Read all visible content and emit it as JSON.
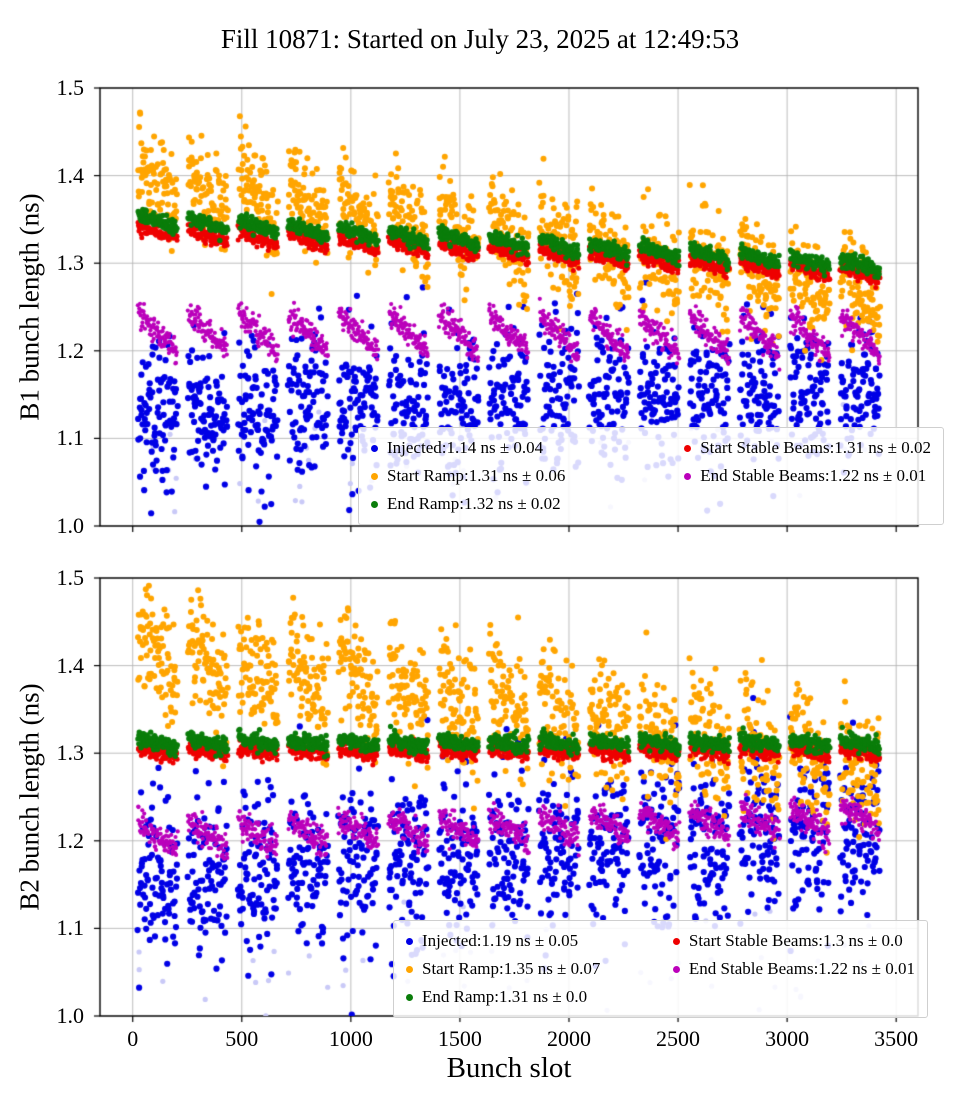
{
  "title": "Fill 10871: Started on July 23, 2025 at 12:49:53",
  "xlabel": "Bunch slot",
  "axes": {
    "x_tick_labels": [
      "0",
      "500",
      "1000",
      "1500",
      "2000",
      "2500",
      "3000",
      "3500"
    ],
    "x_tick_values": [
      0,
      500,
      1000,
      1500,
      2000,
      2500,
      3000,
      3500
    ],
    "y_tick_labels": [
      "1.0",
      "1.1",
      "1.2",
      "1.3",
      "1.4",
      "1.5"
    ],
    "y_tick_values": [
      1.0,
      1.1,
      1.2,
      1.3,
      1.4,
      1.5
    ]
  },
  "chart_data": [
    {
      "type": "scatter",
      "title": "",
      "ylabel": "B1 bunch length (ns)",
      "xlabel": "",
      "xlim": [
        -150,
        3600
      ],
      "ylim": [
        1.0,
        1.5
      ],
      "grid": true,
      "legend_position": "lower right",
      "x_unit": "bunch slot",
      "y_unit": "ns",
      "trains": {
        "start": 25,
        "count": 15,
        "spacing": 230,
        "length": 180,
        "step": 2
      },
      "series": [
        {
          "name": "Injected",
          "label": "Injected:1.14 ns ± 0.04",
          "mean_ns": 1.14,
          "std_ns": 0.04,
          "color": "#0000e6",
          "r": 3.1,
          "y0": 1.125,
          "y1": 1.16,
          "std": 0.042,
          "saw": 0
        },
        {
          "name": "Start Ramp",
          "label": "Start Ramp:1.31 ns ± 0.06",
          "mean_ns": 1.31,
          "std_ns": 0.06,
          "color": "#ffa500",
          "r": 3.0,
          "y0": 1.395,
          "y1": 1.265,
          "std": 0.027,
          "saw": 0.045
        },
        {
          "name": "End Ramp",
          "label": "End Ramp:1.32 ns ± 0.02",
          "mean_ns": 1.32,
          "std_ns": 0.02,
          "color": "#0a7d0a",
          "r": 2.7,
          "y0": 1.35,
          "y1": 1.297,
          "std": 0.004,
          "saw": 0.012
        },
        {
          "name": "Start Stable Beams",
          "label": "Start Stable Beams:1.31 ns ± 0.02",
          "mean_ns": 1.31,
          "std_ns": 0.02,
          "color": "#ee0000",
          "r": 2.5,
          "y0": 1.337,
          "y1": 1.287,
          "std": 0.004,
          "saw": 0.012
        },
        {
          "name": "End Stable Beams",
          "label": "End Stable Beams:1.22 ns ± 0.01",
          "mean_ns": 1.22,
          "std_ns": 0.01,
          "color": "#bb00bb",
          "r": 2.1,
          "y0": 1.222,
          "y1": 1.217,
          "std": 0.007,
          "saw": 0.045
        },
        {
          "name": "faint-points",
          "label": "",
          "color": "#c9c9f7",
          "r": 2.6,
          "y0": 1.07,
          "y1": 1.06,
          "std": 0.04,
          "saw": 0,
          "density": 0.05
        }
      ]
    },
    {
      "type": "scatter",
      "title": "",
      "ylabel": "B2 bunch length (ns)",
      "xlabel": "Bunch slot",
      "xlim": [
        -150,
        3600
      ],
      "ylim": [
        1.0,
        1.5
      ],
      "grid": true,
      "legend_position": "lower right",
      "x_unit": "bunch slot",
      "y_unit": "ns",
      "trains": {
        "start": 25,
        "count": 15,
        "spacing": 230,
        "length": 180,
        "step": 2
      },
      "series": [
        {
          "name": "Injected",
          "label": "Injected:1.19 ns ± 0.05",
          "mean_ns": 1.19,
          "std_ns": 0.05,
          "color": "#0000e6",
          "r": 3.1,
          "y0": 1.16,
          "y1": 1.21,
          "std": 0.05,
          "saw": 0
        },
        {
          "name": "Start Ramp",
          "label": "Start Ramp:1.35 ns ± 0.07",
          "mean_ns": 1.35,
          "std_ns": 0.07,
          "color": "#ffa500",
          "r": 3.0,
          "y0": 1.42,
          "y1": 1.28,
          "std": 0.035,
          "saw": 0.05
        },
        {
          "name": "End Ramp",
          "label": "End Ramp:1.31 ns ± 0.0",
          "mean_ns": 1.31,
          "std_ns": 0.0,
          "color": "#0a7d0a",
          "r": 2.7,
          "y0": 1.312,
          "y1": 1.312,
          "std": 0.0045,
          "saw": 0.008
        },
        {
          "name": "Start Stable Beams",
          "label": "Start Stable Beams:1.3 ns ± 0.0",
          "mean_ns": 1.3,
          "std_ns": 0.0,
          "color": "#ee0000",
          "r": 2.5,
          "y0": 1.302,
          "y1": 1.302,
          "std": 0.0045,
          "saw": 0.008
        },
        {
          "name": "End Stable Beams",
          "label": "End Stable Beams:1.22 ns ± 0.01",
          "mean_ns": 1.22,
          "std_ns": 0.01,
          "color": "#bb00bb",
          "r": 2.1,
          "y0": 1.205,
          "y1": 1.225,
          "std": 0.008,
          "saw": 0.03
        },
        {
          "name": "faint-points",
          "label": "",
          "color": "#c9c9f7",
          "r": 2.6,
          "y0": 1.06,
          "y1": 1.055,
          "std": 0.04,
          "saw": 0,
          "density": 0.05
        }
      ]
    }
  ]
}
